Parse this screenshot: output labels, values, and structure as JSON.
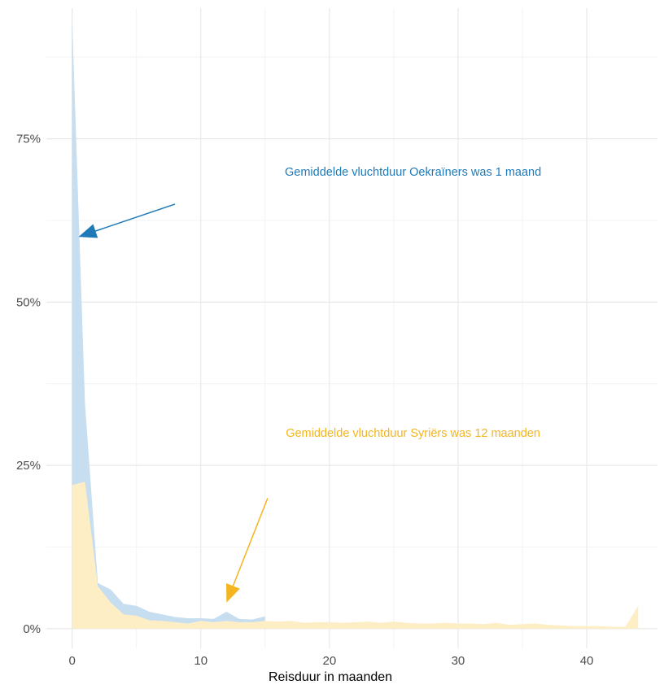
{
  "chart_data": {
    "type": "area",
    "title": "",
    "xlabel": "Reisduur in maanden",
    "ylabel": "",
    "xlim": [
      -2,
      45.5
    ],
    "ylim": [
      -0.03,
      0.95
    ],
    "x_ticks": [
      0,
      10,
      20,
      30,
      40
    ],
    "x_tick_labels": [
      "0",
      "10",
      "20",
      "30",
      "40"
    ],
    "y_ticks": [
      0,
      0.25,
      0.5,
      0.75
    ],
    "y_tick_labels": [
      "0%",
      "25%",
      "50%",
      "75%"
    ],
    "grid": true,
    "series": [
      {
        "color": "#c6def0",
        "x": [
          0,
          1,
          2,
          3,
          4,
          5,
          6,
          7,
          8,
          9,
          10,
          11,
          12,
          13,
          14,
          15
        ],
        "values": [
          0.935,
          0.345,
          0.07,
          0.06,
          0.038,
          0.035,
          0.026,
          0.022,
          0.018,
          0.016,
          0.016,
          0.015,
          0.026,
          0.015,
          0.014,
          0.019
        ]
      },
      {
        "color": "#fdeec6",
        "x": [
          0,
          1,
          2,
          3,
          4,
          5,
          6,
          7,
          8,
          9,
          10,
          11,
          12,
          13,
          14,
          15,
          16,
          17,
          18,
          19,
          20,
          21,
          22,
          23,
          24,
          25,
          26,
          27,
          28,
          29,
          30,
          31,
          32,
          33,
          34,
          35,
          36,
          37,
          38,
          39,
          40,
          41,
          42,
          43,
          44
        ],
        "values": [
          0.22,
          0.225,
          0.065,
          0.04,
          0.022,
          0.02,
          0.013,
          0.012,
          0.01,
          0.008,
          0.012,
          0.01,
          0.012,
          0.01,
          0.01,
          0.012,
          0.011,
          0.012,
          0.009,
          0.01,
          0.01,
          0.009,
          0.01,
          0.011,
          0.009,
          0.011,
          0.009,
          0.008,
          0.008,
          0.009,
          0.008,
          0.008,
          0.007,
          0.009,
          0.006,
          0.007,
          0.008,
          0.006,
          0.005,
          0.004,
          0.004,
          0.004,
          0.003,
          0.003,
          0.035
        ]
      }
    ],
    "annotations": [
      {
        "text": "Gemiddelde vluchtduur Oekraïners was 1 maand",
        "x": 26.5,
        "y": 0.7,
        "color": "#1f7ab8"
      },
      {
        "text": "Gemiddelde vluchtduur Syriërs was 12 maanden",
        "x": 26.5,
        "y": 0.3,
        "color": "#f5b51e"
      }
    ],
    "arrows": [
      {
        "from": [
          8,
          0.65
        ],
        "to": [
          0.5,
          0.6
        ],
        "color": "#1f7ab8"
      },
      {
        "from": [
          15.2,
          0.2
        ],
        "to": [
          12,
          0.04
        ],
        "color": "#f5b51e"
      }
    ]
  }
}
